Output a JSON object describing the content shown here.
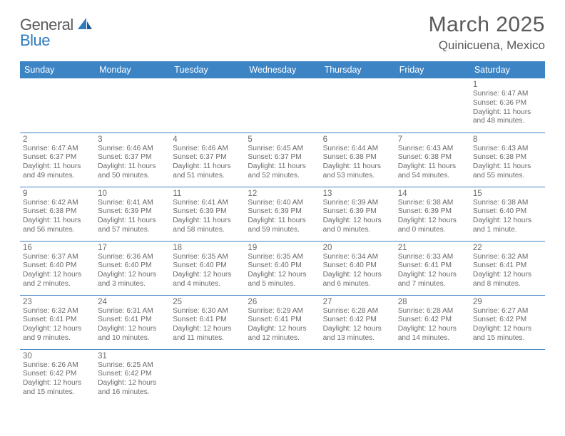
{
  "logo": {
    "text1": "General",
    "text2": "Blue"
  },
  "title": {
    "month": "March 2025",
    "location": "Quinicuena, Mexico"
  },
  "colors": {
    "header_bg": "#3d84c5",
    "text": "#5a5a5a",
    "blue_text": "#2f7bbf",
    "border": "#3d84c5"
  },
  "weekdays": [
    "Sunday",
    "Monday",
    "Tuesday",
    "Wednesday",
    "Thursday",
    "Friday",
    "Saturday"
  ],
  "weeks": [
    [
      null,
      null,
      null,
      null,
      null,
      null,
      {
        "d": "1",
        "rise": "6:47 AM",
        "set": "6:36 PM",
        "dl": "11 hours and 48 minutes."
      }
    ],
    [
      {
        "d": "2",
        "rise": "6:47 AM",
        "set": "6:37 PM",
        "dl": "11 hours and 49 minutes."
      },
      {
        "d": "3",
        "rise": "6:46 AM",
        "set": "6:37 PM",
        "dl": "11 hours and 50 minutes."
      },
      {
        "d": "4",
        "rise": "6:46 AM",
        "set": "6:37 PM",
        "dl": "11 hours and 51 minutes."
      },
      {
        "d": "5",
        "rise": "6:45 AM",
        "set": "6:37 PM",
        "dl": "11 hours and 52 minutes."
      },
      {
        "d": "6",
        "rise": "6:44 AM",
        "set": "6:38 PM",
        "dl": "11 hours and 53 minutes."
      },
      {
        "d": "7",
        "rise": "6:43 AM",
        "set": "6:38 PM",
        "dl": "11 hours and 54 minutes."
      },
      {
        "d": "8",
        "rise": "6:43 AM",
        "set": "6:38 PM",
        "dl": "11 hours and 55 minutes."
      }
    ],
    [
      {
        "d": "9",
        "rise": "6:42 AM",
        "set": "6:38 PM",
        "dl": "11 hours and 56 minutes."
      },
      {
        "d": "10",
        "rise": "6:41 AM",
        "set": "6:39 PM",
        "dl": "11 hours and 57 minutes."
      },
      {
        "d": "11",
        "rise": "6:41 AM",
        "set": "6:39 PM",
        "dl": "11 hours and 58 minutes."
      },
      {
        "d": "12",
        "rise": "6:40 AM",
        "set": "6:39 PM",
        "dl": "11 hours and 59 minutes."
      },
      {
        "d": "13",
        "rise": "6:39 AM",
        "set": "6:39 PM",
        "dl": "12 hours and 0 minutes."
      },
      {
        "d": "14",
        "rise": "6:38 AM",
        "set": "6:39 PM",
        "dl": "12 hours and 0 minutes."
      },
      {
        "d": "15",
        "rise": "6:38 AM",
        "set": "6:40 PM",
        "dl": "12 hours and 1 minute."
      }
    ],
    [
      {
        "d": "16",
        "rise": "6:37 AM",
        "set": "6:40 PM",
        "dl": "12 hours and 2 minutes."
      },
      {
        "d": "17",
        "rise": "6:36 AM",
        "set": "6:40 PM",
        "dl": "12 hours and 3 minutes."
      },
      {
        "d": "18",
        "rise": "6:35 AM",
        "set": "6:40 PM",
        "dl": "12 hours and 4 minutes."
      },
      {
        "d": "19",
        "rise": "6:35 AM",
        "set": "6:40 PM",
        "dl": "12 hours and 5 minutes."
      },
      {
        "d": "20",
        "rise": "6:34 AM",
        "set": "6:40 PM",
        "dl": "12 hours and 6 minutes."
      },
      {
        "d": "21",
        "rise": "6:33 AM",
        "set": "6:41 PM",
        "dl": "12 hours and 7 minutes."
      },
      {
        "d": "22",
        "rise": "6:32 AM",
        "set": "6:41 PM",
        "dl": "12 hours and 8 minutes."
      }
    ],
    [
      {
        "d": "23",
        "rise": "6:32 AM",
        "set": "6:41 PM",
        "dl": "12 hours and 9 minutes."
      },
      {
        "d": "24",
        "rise": "6:31 AM",
        "set": "6:41 PM",
        "dl": "12 hours and 10 minutes."
      },
      {
        "d": "25",
        "rise": "6:30 AM",
        "set": "6:41 PM",
        "dl": "12 hours and 11 minutes."
      },
      {
        "d": "26",
        "rise": "6:29 AM",
        "set": "6:41 PM",
        "dl": "12 hours and 12 minutes."
      },
      {
        "d": "27",
        "rise": "6:28 AM",
        "set": "6:42 PM",
        "dl": "12 hours and 13 minutes."
      },
      {
        "d": "28",
        "rise": "6:28 AM",
        "set": "6:42 PM",
        "dl": "12 hours and 14 minutes."
      },
      {
        "d": "29",
        "rise": "6:27 AM",
        "set": "6:42 PM",
        "dl": "12 hours and 15 minutes."
      }
    ],
    [
      {
        "d": "30",
        "rise": "6:26 AM",
        "set": "6:42 PM",
        "dl": "12 hours and 15 minutes."
      },
      {
        "d": "31",
        "rise": "6:25 AM",
        "set": "6:42 PM",
        "dl": "12 hours and 16 minutes."
      },
      null,
      null,
      null,
      null,
      null
    ]
  ],
  "labels": {
    "sunrise": "Sunrise: ",
    "sunset": "Sunset: ",
    "daylight": "Daylight: "
  }
}
